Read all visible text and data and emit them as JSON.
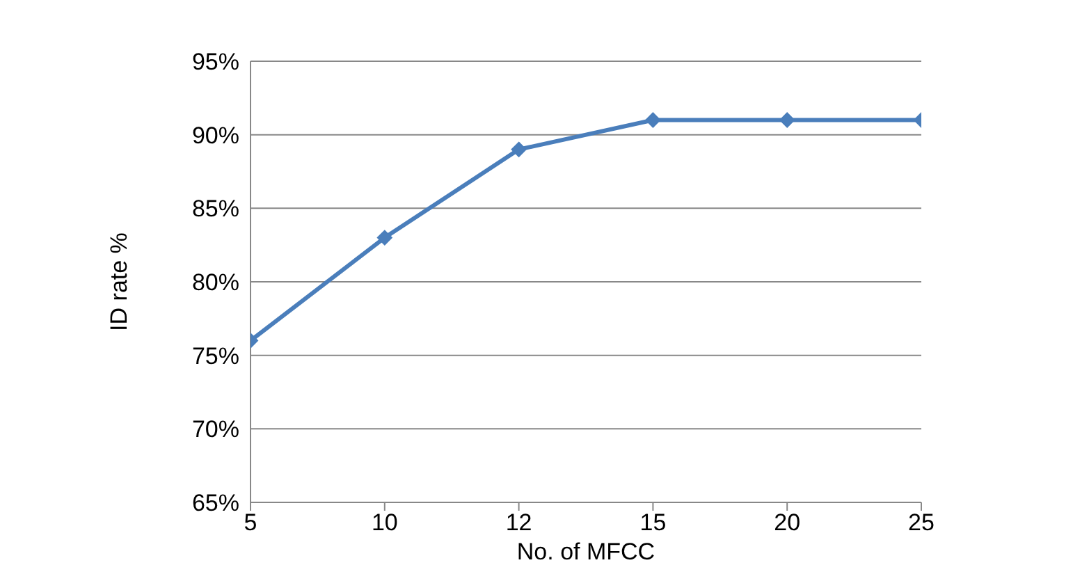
{
  "chart_data": {
    "type": "line",
    "xlabel": "No. of MFCC",
    "ylabel": "ID rate %",
    "categories": [
      "5",
      "10",
      "12",
      "15",
      "20",
      "25"
    ],
    "series": [
      {
        "color": "#4a7ebb",
        "values": [
          76,
          83,
          89,
          91,
          91,
          91
        ]
      }
    ],
    "ylim": [
      65,
      95
    ],
    "yticks": [
      {
        "value": 65,
        "label": "65%"
      },
      {
        "value": 70,
        "label": "70%"
      },
      {
        "value": 75,
        "label": "75%"
      },
      {
        "value": 80,
        "label": "80%"
      },
      {
        "value": 85,
        "label": "85%"
      },
      {
        "value": 90,
        "label": "90%"
      },
      {
        "value": 95,
        "label": "95%"
      }
    ],
    "grid": "y",
    "marker": "diamond",
    "line_style": "solid",
    "legend": false
  }
}
